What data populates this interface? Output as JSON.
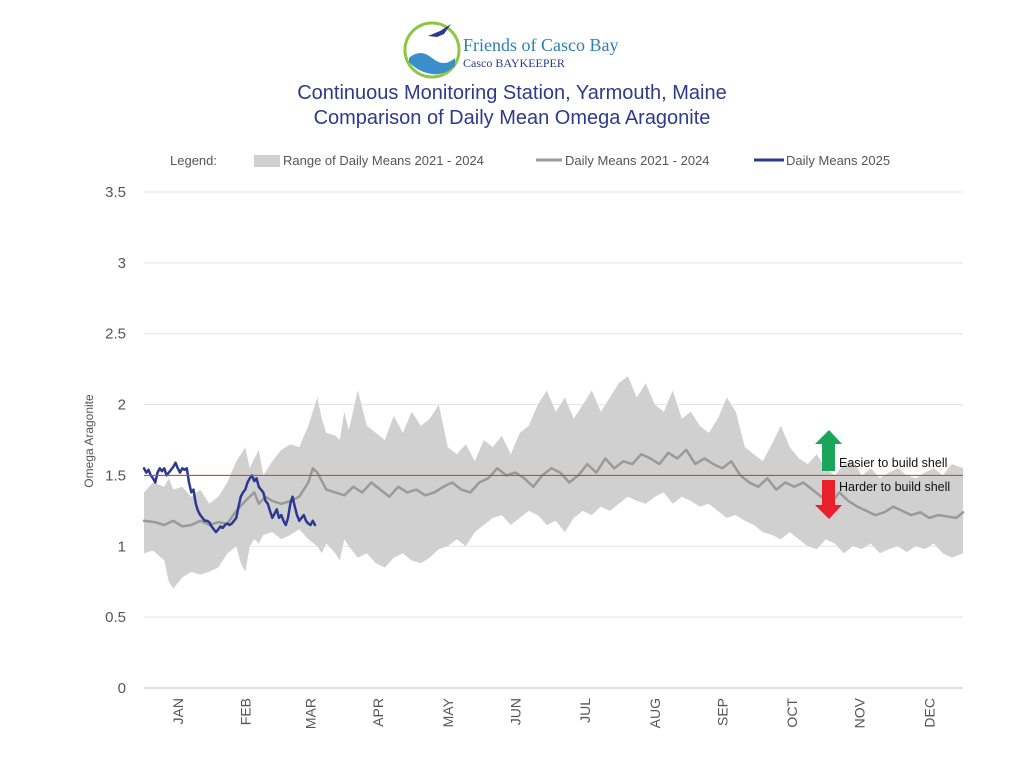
{
  "logo": {
    "org_name": "Friends of Casco Bay",
    "program": "Casco BAYKEEPER"
  },
  "colors": {
    "range_band": "#d0d0d0",
    "historic_mean": "#9a9a9a",
    "current_year": "#2b3990",
    "threshold": "#e04040",
    "title": "#2e3a8c",
    "easier_arrow": "#1aa55a",
    "harder_arrow": "#e8202a"
  },
  "chart_data": {
    "type": "area",
    "title_line1": "Continuous Monitoring Station, Yarmouth, Maine",
    "title_line2": "Comparison of Daily Mean Omega Aragonite",
    "ylabel": "Omega Aragonite",
    "ylim": [
      0,
      3.5
    ],
    "y_ticks": [
      "0",
      "0.5",
      "1",
      "1.5",
      "2",
      "2.5",
      "3",
      "3.5"
    ],
    "x_unit": "day of year",
    "xlim": [
      1,
      365
    ],
    "month_labels": [
      "JAN",
      "FEB",
      "MAR",
      "APR",
      "MAY",
      "JUN",
      "JUL",
      "AUG",
      "SEP",
      "OCT",
      "NOV",
      "DEC"
    ],
    "month_centers": [
      16,
      46,
      75,
      105,
      136,
      166,
      197,
      228,
      258,
      289,
      319,
      350
    ],
    "grid": true,
    "legend": {
      "title": "Legend:",
      "position": "top",
      "entries": [
        "Range of Daily Means 2021 - 2024",
        "Daily Means 2021 - 2024",
        "Daily Means 2025"
      ]
    },
    "threshold": 1.5,
    "annotations": {
      "above": "Easier to build shell",
      "below": "Harder to build shell"
    },
    "series": [
      {
        "name": "Range of Daily Means 2021 - 2024",
        "kind": "band",
        "x": [
          1,
          5,
          10,
          12,
          14,
          18,
          22,
          26,
          30,
          34,
          38,
          42,
          44,
          46,
          48,
          50,
          52,
          54,
          58,
          62,
          66,
          70,
          74,
          78,
          80,
          82,
          86,
          88,
          90,
          92,
          96,
          100,
          104,
          108,
          112,
          116,
          120,
          124,
          128,
          132,
          136,
          140,
          144,
          148,
          152,
          156,
          160,
          164,
          168,
          172,
          176,
          180,
          184,
          188,
          192,
          196,
          200,
          204,
          208,
          212,
          216,
          220,
          224,
          228,
          232,
          236,
          240,
          244,
          248,
          252,
          256,
          260,
          264,
          268,
          272,
          276,
          280,
          284,
          288,
          292,
          296,
          300,
          304,
          308,
          312,
          316,
          320,
          324,
          328,
          332,
          336,
          340,
          344,
          348,
          352,
          356,
          360,
          365
        ],
        "lower": [
          0.95,
          0.97,
          0.9,
          0.75,
          0.7,
          0.78,
          0.82,
          0.8,
          0.82,
          0.85,
          0.95,
          1.0,
          0.88,
          0.82,
          1.0,
          1.05,
          1.02,
          1.08,
          1.1,
          1.05,
          1.08,
          1.12,
          1.05,
          1.0,
          0.95,
          1.02,
          0.95,
          0.9,
          1.05,
          1.0,
          0.92,
          0.95,
          0.88,
          0.85,
          0.92,
          0.95,
          0.9,
          0.88,
          0.92,
          0.98,
          1.0,
          1.05,
          1.0,
          1.1,
          1.15,
          1.2,
          1.22,
          1.15,
          1.2,
          1.25,
          1.22,
          1.15,
          1.18,
          1.1,
          1.2,
          1.25,
          1.22,
          1.28,
          1.25,
          1.3,
          1.35,
          1.32,
          1.3,
          1.35,
          1.38,
          1.3,
          1.35,
          1.32,
          1.28,
          1.3,
          1.25,
          1.2,
          1.22,
          1.18,
          1.15,
          1.1,
          1.08,
          1.05,
          1.1,
          1.05,
          1.0,
          0.98,
          1.05,
          1.02,
          0.95,
          1.0,
          0.98,
          1.02,
          0.95,
          0.98,
          1.0,
          0.96,
          1.0,
          0.98,
          1.02,
          0.95,
          0.92,
          0.95
        ],
        "upper": [
          1.38,
          1.45,
          1.42,
          1.48,
          1.4,
          1.42,
          1.35,
          1.4,
          1.3,
          1.35,
          1.45,
          1.6,
          1.65,
          1.7,
          1.55,
          1.62,
          1.68,
          1.5,
          1.6,
          1.68,
          1.72,
          1.7,
          1.85,
          2.05,
          1.9,
          1.8,
          1.78,
          1.75,
          1.95,
          1.82,
          2.1,
          1.85,
          1.8,
          1.75,
          1.92,
          1.8,
          1.95,
          1.85,
          1.9,
          2.0,
          1.7,
          1.65,
          1.72,
          1.6,
          1.75,
          1.7,
          1.78,
          1.65,
          1.8,
          1.85,
          2.0,
          2.1,
          1.95,
          2.05,
          1.9,
          2.0,
          2.1,
          1.95,
          2.05,
          2.15,
          2.2,
          2.05,
          2.15,
          2.0,
          1.95,
          2.1,
          1.9,
          1.95,
          1.85,
          1.8,
          1.9,
          2.05,
          1.95,
          1.7,
          1.65,
          1.6,
          1.72,
          1.85,
          1.7,
          1.62,
          1.58,
          1.65,
          1.55,
          1.5,
          1.58,
          1.6,
          1.5,
          1.55,
          1.48,
          1.52,
          1.55,
          1.5,
          1.48,
          1.52,
          1.55,
          1.5,
          1.58,
          1.55
        ]
      },
      {
        "name": "Daily Means 2021 - 2024",
        "kind": "line",
        "x": [
          1,
          6,
          10,
          14,
          18,
          22,
          26,
          30,
          34,
          38,
          42,
          46,
          50,
          52,
          55,
          58,
          62,
          66,
          70,
          74,
          76,
          78,
          82,
          86,
          90,
          94,
          98,
          102,
          106,
          110,
          114,
          118,
          122,
          126,
          130,
          134,
          138,
          142,
          146,
          150,
          154,
          158,
          162,
          166,
          170,
          174,
          178,
          182,
          186,
          190,
          194,
          198,
          202,
          206,
          210,
          214,
          218,
          222,
          226,
          230,
          234,
          238,
          242,
          246,
          250,
          254,
          258,
          262,
          266,
          270,
          274,
          278,
          282,
          286,
          290,
          294,
          298,
          302,
          306,
          310,
          314,
          318,
          322,
          326,
          330,
          334,
          338,
          342,
          346,
          350,
          354,
          358,
          362,
          365
        ],
        "y": [
          1.18,
          1.17,
          1.15,
          1.18,
          1.14,
          1.15,
          1.18,
          1.15,
          1.17,
          1.16,
          1.25,
          1.32,
          1.38,
          1.3,
          1.35,
          1.32,
          1.3,
          1.32,
          1.35,
          1.45,
          1.55,
          1.52,
          1.4,
          1.38,
          1.36,
          1.42,
          1.38,
          1.45,
          1.4,
          1.35,
          1.42,
          1.38,
          1.4,
          1.36,
          1.38,
          1.42,
          1.45,
          1.4,
          1.38,
          1.45,
          1.48,
          1.55,
          1.5,
          1.52,
          1.48,
          1.42,
          1.5,
          1.55,
          1.52,
          1.45,
          1.5,
          1.58,
          1.52,
          1.62,
          1.55,
          1.6,
          1.58,
          1.65,
          1.62,
          1.58,
          1.66,
          1.62,
          1.68,
          1.58,
          1.62,
          1.58,
          1.55,
          1.6,
          1.5,
          1.45,
          1.42,
          1.48,
          1.4,
          1.45,
          1.42,
          1.45,
          1.4,
          1.35,
          1.3,
          1.38,
          1.32,
          1.28,
          1.25,
          1.22,
          1.24,
          1.28,
          1.25,
          1.22,
          1.24,
          1.2,
          1.22,
          1.21,
          1.2,
          1.24
        ]
      },
      {
        "name": "Daily Means 2025",
        "kind": "line",
        "x": [
          1,
          2,
          3,
          4,
          5,
          6,
          7,
          8,
          9,
          10,
          11,
          12,
          13,
          14,
          15,
          16,
          17,
          18,
          19,
          20,
          21,
          22,
          23,
          24,
          25,
          26,
          27,
          28,
          29,
          30,
          31,
          32,
          33,
          34,
          35,
          36,
          37,
          38,
          39,
          40,
          41,
          42,
          43,
          44,
          45,
          46,
          47,
          48,
          49,
          50,
          51,
          52,
          53,
          54,
          55,
          56,
          57,
          58,
          59,
          60,
          61,
          62,
          63,
          64,
          65,
          66,
          67,
          68,
          69,
          70,
          71,
          72,
          73,
          74,
          75,
          76,
          77
        ],
        "y": [
          1.55,
          1.52,
          1.54,
          1.5,
          1.48,
          1.45,
          1.52,
          1.55,
          1.53,
          1.55,
          1.5,
          1.52,
          1.54,
          1.56,
          1.59,
          1.55,
          1.52,
          1.55,
          1.54,
          1.55,
          1.45,
          1.38,
          1.4,
          1.3,
          1.25,
          1.22,
          1.2,
          1.18,
          1.18,
          1.17,
          1.14,
          1.12,
          1.1,
          1.12,
          1.14,
          1.13,
          1.15,
          1.16,
          1.15,
          1.16,
          1.18,
          1.2,
          1.28,
          1.35,
          1.38,
          1.4,
          1.45,
          1.48,
          1.5,
          1.46,
          1.48,
          1.42,
          1.4,
          1.38,
          1.32,
          1.3,
          1.25,
          1.2,
          1.23,
          1.26,
          1.2,
          1.22,
          1.18,
          1.15,
          1.2,
          1.3,
          1.35,
          1.28,
          1.22,
          1.18,
          1.2,
          1.22,
          1.18,
          1.16,
          1.15,
          1.18,
          1.15
        ]
      }
    ]
  }
}
